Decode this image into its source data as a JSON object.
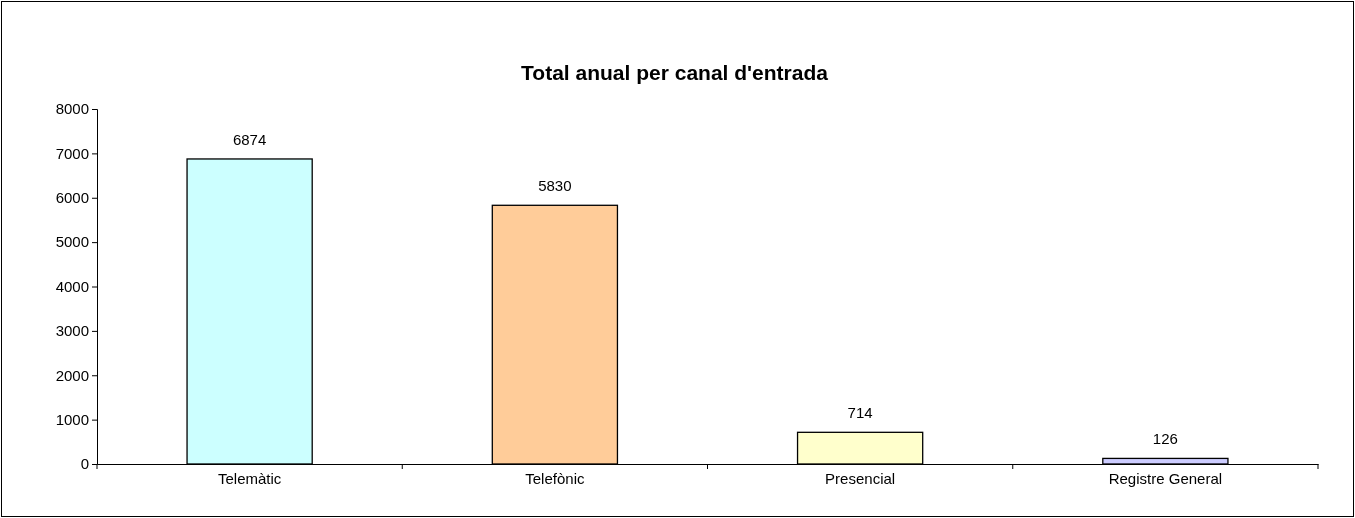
{
  "chart_data": {
    "type": "bar",
    "title": "Total anual per canal d'entrada",
    "categories": [
      "Telemàtic",
      "Telefònic",
      "Presencial",
      "Registre General"
    ],
    "values": [
      6874,
      5830,
      714,
      126
    ],
    "colors": [
      "#ccffff",
      "#ffcc99",
      "#ffffcc",
      "#ccccff"
    ],
    "ylim": [
      0,
      8000
    ],
    "yticks": [
      0,
      1000,
      2000,
      3000,
      4000,
      5000,
      6000,
      7000,
      8000
    ],
    "data_labels": true
  }
}
